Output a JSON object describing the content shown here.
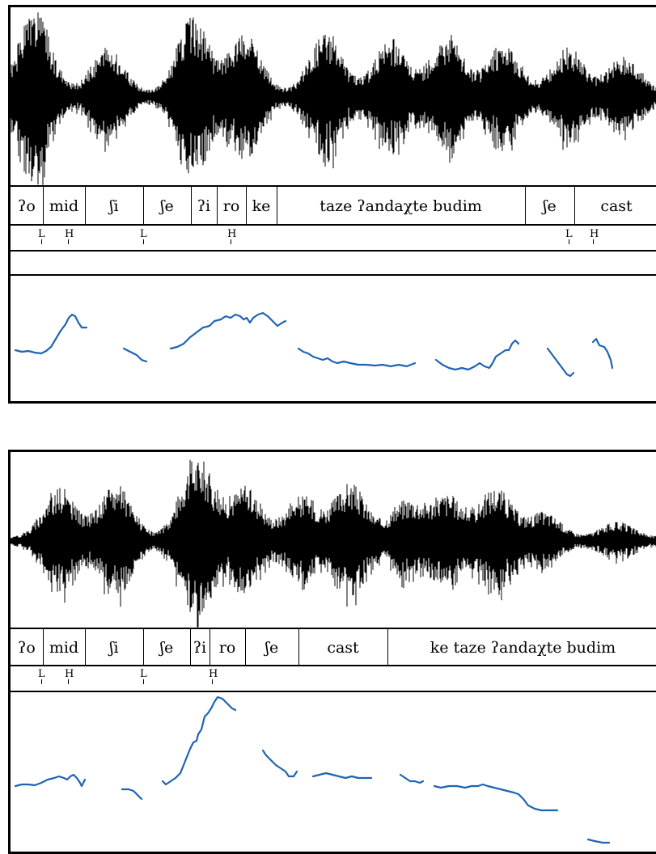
{
  "colors": {
    "waveform": "#000000",
    "pitch": "#1e64b4",
    "frame": "#000000"
  },
  "panels": [
    {
      "segments": [
        "ʔo",
        "mid",
        "ʃi",
        "ʃe",
        "ʔi",
        "ro",
        "ke",
        "taze ʔandaχte budim",
        "ʃe",
        "cast"
      ],
      "tones": [
        "L",
        "H",
        "L",
        "H",
        "L",
        "H"
      ]
    },
    {
      "segments": [
        "ʔo",
        "mid",
        "ʃi",
        "ʃe",
        "ʔi",
        "ro",
        "ʃe",
        "cast",
        "ke taze ʔandaχte budim"
      ],
      "tones": [
        "L",
        "H",
        "L",
        "H"
      ]
    }
  ]
}
